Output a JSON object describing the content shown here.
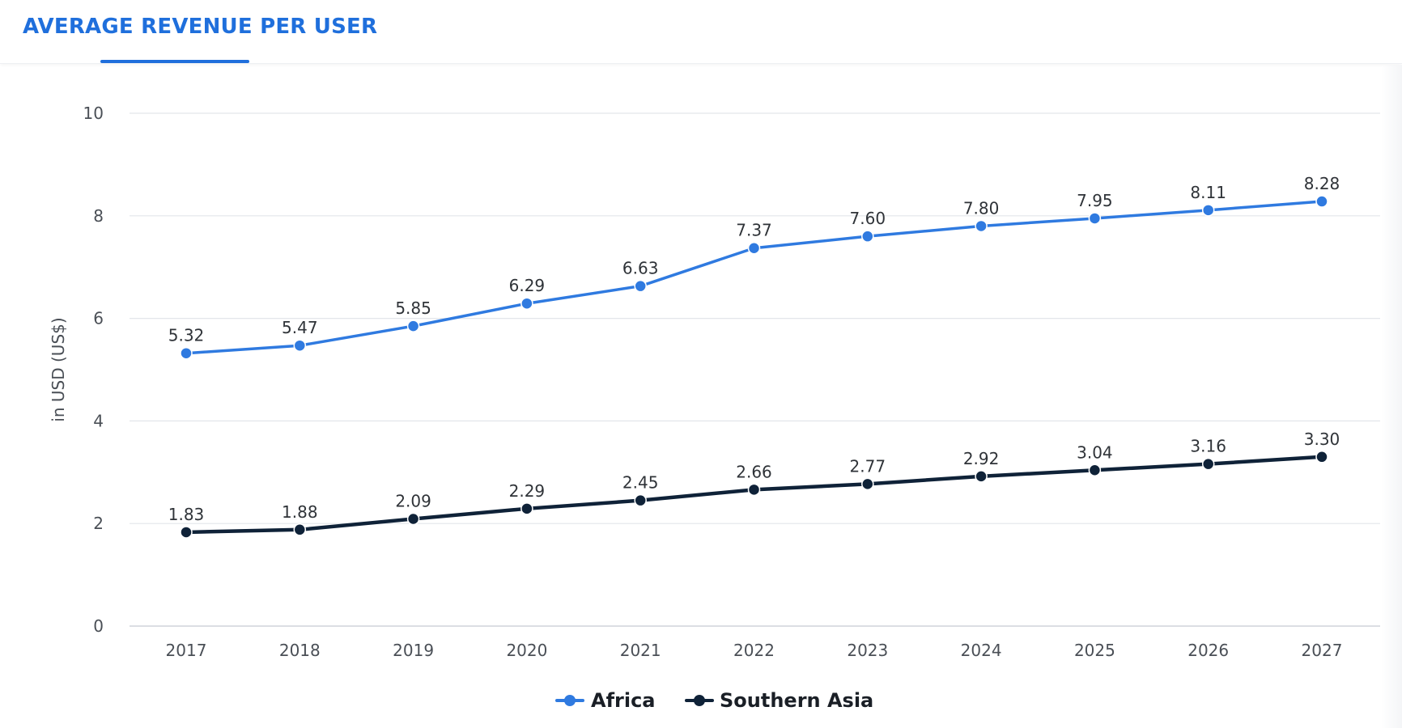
{
  "header": {
    "tab_title": "AVERAGE REVENUE PER USER"
  },
  "colors": {
    "accent": "#1f6fdc",
    "africa": "#2f7ae0",
    "southern_asia": "#0f2238",
    "grid": "#e3e6ea"
  },
  "chart_data": {
    "type": "line",
    "title": "",
    "xlabel": "",
    "ylabel": "in USD (US$)",
    "categories": [
      "2017",
      "2018",
      "2019",
      "2020",
      "2021",
      "2022",
      "2023",
      "2024",
      "2025",
      "2026",
      "2027"
    ],
    "ylim": [
      0,
      10
    ],
    "yticks": [
      0,
      2,
      4,
      6,
      8,
      10
    ],
    "grid": true,
    "legend_position": "bottom",
    "series": [
      {
        "name": "Africa",
        "color": "#2f7ae0",
        "values": [
          5.32,
          5.47,
          5.85,
          6.29,
          6.63,
          7.37,
          7.6,
          7.8,
          7.95,
          8.11,
          8.28
        ],
        "labels": [
          "5.32",
          "5.47",
          "5.85",
          "6.29",
          "6.63",
          "7.37",
          "7.60",
          "7.80",
          "7.95",
          "8.11",
          "8.28"
        ]
      },
      {
        "name": "Southern Asia",
        "color": "#0f2238",
        "values": [
          1.83,
          1.88,
          2.09,
          2.29,
          2.45,
          2.66,
          2.77,
          2.92,
          3.04,
          3.16,
          3.3
        ],
        "labels": [
          "1.83",
          "1.88",
          "2.09",
          "2.29",
          "2.45",
          "2.66",
          "2.77",
          "2.92",
          "3.04",
          "3.16",
          "3.30"
        ]
      }
    ]
  }
}
